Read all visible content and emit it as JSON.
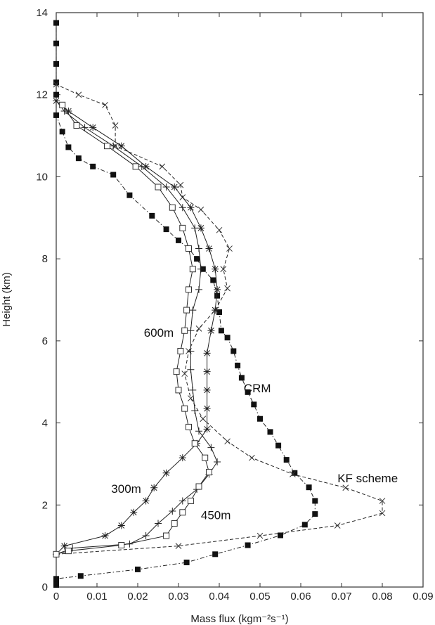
{
  "chart_data": {
    "type": "line",
    "xlabel": "Mass flux (kgm⁻²s⁻¹)",
    "ylabel": "Height (km)",
    "xlim": [
      0,
      0.09
    ],
    "ylim": [
      0,
      14
    ],
    "x_ticks": [
      "0",
      "0.01",
      "0.02",
      "0.03",
      "0.04",
      "0.05",
      "0.06",
      "0.07",
      "0.08",
      "0.09"
    ],
    "y_ticks": [
      "0",
      "2",
      "4",
      "6",
      "8",
      "10",
      "12",
      "14"
    ],
    "grid": false,
    "series": [
      {
        "name": "CRM",
        "marker": "filled-square",
        "line": "dash-dot",
        "points": [
          [
            0,
            0.05
          ],
          [
            0,
            0.1
          ],
          [
            0,
            0.2
          ],
          [
            0.006,
            0.27
          ],
          [
            0.02,
            0.43
          ],
          [
            0.032,
            0.6
          ],
          [
            0.039,
            0.8
          ],
          [
            0.047,
            1.02
          ],
          [
            0.055,
            1.26
          ],
          [
            0.061,
            1.52
          ],
          [
            0.0635,
            1.78
          ],
          [
            0.0635,
            2.1
          ],
          [
            0.062,
            2.43
          ],
          [
            0.0585,
            2.78
          ],
          [
            0.0565,
            3.1
          ],
          [
            0.0545,
            3.45
          ],
          [
            0.0525,
            3.78
          ],
          [
            0.05,
            4.1
          ],
          [
            0.0485,
            4.45
          ],
          [
            0.047,
            4.75
          ],
          [
            0.0455,
            5.1
          ],
          [
            0.0445,
            5.4
          ],
          [
            0.0435,
            5.75
          ],
          [
            0.042,
            6.08
          ],
          [
            0.0405,
            6.25
          ],
          [
            0.04,
            6.7
          ],
          [
            0.0395,
            7.1
          ],
          [
            0.0385,
            7.48
          ],
          [
            0.036,
            7.75
          ],
          [
            0.0345,
            8.0
          ],
          [
            0.0325,
            8.25
          ],
          [
            0.03,
            8.45
          ],
          [
            0.027,
            8.72
          ],
          [
            0.0235,
            9.05
          ],
          [
            0.018,
            9.55
          ],
          [
            0.014,
            10.05
          ],
          [
            0.009,
            10.25
          ],
          [
            0.0055,
            10.45
          ],
          [
            0.003,
            10.72
          ],
          [
            0.0015,
            11.1
          ],
          [
            0,
            11.5
          ],
          [
            0,
            12
          ],
          [
            0,
            12.3
          ],
          [
            0,
            12.75
          ],
          [
            0,
            13.25
          ],
          [
            0,
            13.75
          ]
        ]
      },
      {
        "name": "KF scheme",
        "marker": "x",
        "line": "dashed",
        "points": [
          [
            0,
            0.8
          ],
          [
            0.03,
            1.0
          ],
          [
            0.05,
            1.25
          ],
          [
            0.069,
            1.5
          ],
          [
            0.08,
            1.8
          ],
          [
            0.08,
            2.1
          ],
          [
            0.071,
            2.42
          ],
          [
            0.058,
            2.75
          ],
          [
            0.048,
            3.15
          ],
          [
            0.042,
            3.55
          ],
          [
            0.036,
            4.1
          ],
          [
            0.033,
            4.6
          ],
          [
            0.0315,
            5.2
          ],
          [
            0.0325,
            5.75
          ],
          [
            0.035,
            6.3
          ],
          [
            0.039,
            6.75
          ],
          [
            0.042,
            7.28
          ],
          [
            0.041,
            7.75
          ],
          [
            0.0425,
            8.25
          ],
          [
            0.04,
            8.7
          ],
          [
            0.0355,
            9.2
          ],
          [
            0.031,
            9.5
          ],
          [
            0.0305,
            9.8
          ],
          [
            0.026,
            10.25
          ],
          [
            0.0145,
            10.75
          ],
          [
            0.0145,
            11.25
          ],
          [
            0.012,
            11.75
          ],
          [
            0.0055,
            12.0
          ],
          [
            0,
            12.25
          ]
        ]
      },
      {
        "name": "300m",
        "marker": "asterisk",
        "line": "solid",
        "points": [
          [
            0,
            0.8
          ],
          [
            0.002,
            1.0
          ],
          [
            0.012,
            1.25
          ],
          [
            0.016,
            1.5
          ],
          [
            0.019,
            1.82
          ],
          [
            0.022,
            2.1
          ],
          [
            0.024,
            2.42
          ],
          [
            0.027,
            2.78
          ],
          [
            0.031,
            3.15
          ],
          [
            0.0345,
            3.5
          ],
          [
            0.037,
            3.85
          ],
          [
            0.037,
            4.35
          ],
          [
            0.037,
            4.8
          ],
          [
            0.037,
            5.25
          ],
          [
            0.037,
            5.7
          ],
          [
            0.038,
            6.25
          ],
          [
            0.039,
            6.75
          ],
          [
            0.0395,
            7.25
          ],
          [
            0.039,
            7.75
          ],
          [
            0.0375,
            8.25
          ],
          [
            0.0355,
            8.75
          ],
          [
            0.033,
            9.25
          ],
          [
            0.029,
            9.75
          ],
          [
            0.022,
            10.25
          ],
          [
            0.016,
            10.75
          ],
          [
            0.009,
            11.2
          ],
          [
            0.003,
            11.6
          ],
          [
            0,
            11.85
          ]
        ]
      },
      {
        "name": "450m",
        "marker": "plus",
        "line": "solid",
        "points": [
          [
            0,
            0.8
          ],
          [
            0.004,
            0.95
          ],
          [
            0.018,
            1.05
          ],
          [
            0.022,
            1.25
          ],
          [
            0.025,
            1.55
          ],
          [
            0.0285,
            1.85
          ],
          [
            0.031,
            2.1
          ],
          [
            0.0345,
            2.38
          ],
          [
            0.0375,
            2.75
          ],
          [
            0.0395,
            3.05
          ],
          [
            0.038,
            3.4
          ],
          [
            0.035,
            3.8
          ],
          [
            0.034,
            4.3
          ],
          [
            0.0335,
            4.8
          ],
          [
            0.033,
            5.3
          ],
          [
            0.033,
            5.75
          ],
          [
            0.033,
            6.25
          ],
          [
            0.0335,
            6.75
          ],
          [
            0.035,
            7.25
          ],
          [
            0.0355,
            7.75
          ],
          [
            0.035,
            8.25
          ],
          [
            0.034,
            8.75
          ],
          [
            0.031,
            9.25
          ],
          [
            0.027,
            9.75
          ],
          [
            0.021,
            10.25
          ],
          [
            0.014,
            10.75
          ],
          [
            0.007,
            11.2
          ],
          [
            0.002,
            11.6
          ],
          [
            0,
            11.85
          ]
        ]
      },
      {
        "name": "600m",
        "marker": "open-square",
        "line": "solid",
        "points": [
          [
            0,
            0.8
          ],
          [
            0.003,
            0.88
          ],
          [
            0.016,
            1.02
          ],
          [
            0.027,
            1.25
          ],
          [
            0.029,
            1.55
          ],
          [
            0.031,
            1.82
          ],
          [
            0.033,
            2.1
          ],
          [
            0.035,
            2.45
          ],
          [
            0.0375,
            2.8
          ],
          [
            0.0365,
            3.15
          ],
          [
            0.034,
            3.5
          ],
          [
            0.0325,
            3.9
          ],
          [
            0.0315,
            4.35
          ],
          [
            0.03,
            4.8
          ],
          [
            0.0295,
            5.25
          ],
          [
            0.0305,
            5.75
          ],
          [
            0.0315,
            6.25
          ],
          [
            0.032,
            6.75
          ],
          [
            0.0325,
            7.25
          ],
          [
            0.0335,
            7.75
          ],
          [
            0.0325,
            8.25
          ],
          [
            0.031,
            8.75
          ],
          [
            0.0285,
            9.25
          ],
          [
            0.025,
            9.75
          ],
          [
            0.0195,
            10.25
          ],
          [
            0.0125,
            10.75
          ],
          [
            0.005,
            11.25
          ],
          [
            0.0015,
            11.75
          ]
        ]
      }
    ],
    "annotations": [
      {
        "text": "CRM",
        "x": 0.046,
        "y": 4.75
      },
      {
        "text": "KF scheme",
        "x": 0.069,
        "y": 2.55
      },
      {
        "text": "600m",
        "x": 0.0215,
        "y": 6.1
      },
      {
        "text": "300m",
        "x": 0.0135,
        "y": 2.3
      },
      {
        "text": "450m",
        "x": 0.0355,
        "y": 1.65
      }
    ]
  }
}
